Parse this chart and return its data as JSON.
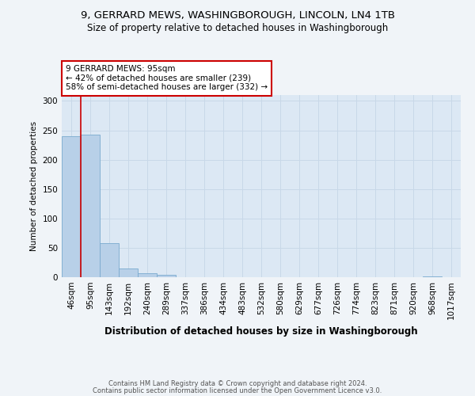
{
  "title1": "9, GERRARD MEWS, WASHINGBOROUGH, LINCOLN, LN4 1TB",
  "title2": "Size of property relative to detached houses in Washingborough",
  "xlabel": "Distribution of detached houses by size in Washingborough",
  "ylabel": "Number of detached properties",
  "bar_labels": [
    "46sqm",
    "95sqm",
    "143sqm",
    "192sqm",
    "240sqm",
    "289sqm",
    "337sqm",
    "386sqm",
    "434sqm",
    "483sqm",
    "532sqm",
    "580sqm",
    "629sqm",
    "677sqm",
    "726sqm",
    "774sqm",
    "823sqm",
    "871sqm",
    "920sqm",
    "968sqm",
    "1017sqm"
  ],
  "bar_values": [
    240,
    243,
    58,
    15,
    7,
    4,
    0,
    0,
    0,
    0,
    0,
    0,
    0,
    0,
    0,
    0,
    0,
    0,
    0,
    2,
    0
  ],
  "bar_color": "#b8d0e8",
  "bar_edge_color": "#7aaacf",
  "grid_color": "#c8d8e8",
  "bg_color": "#dce8f4",
  "ref_line_color": "#cc0000",
  "annotation_text": "9 GERRARD MEWS: 95sqm\n← 42% of detached houses are smaller (239)\n58% of semi-detached houses are larger (332) →",
  "annotation_box_color": "#ffffff",
  "annotation_border_color": "#cc0000",
  "ylim": [
    0,
    310
  ],
  "footnote1": "Contains HM Land Registry data © Crown copyright and database right 2024.",
  "footnote2": "Contains public sector information licensed under the Open Government Licence v3.0."
}
